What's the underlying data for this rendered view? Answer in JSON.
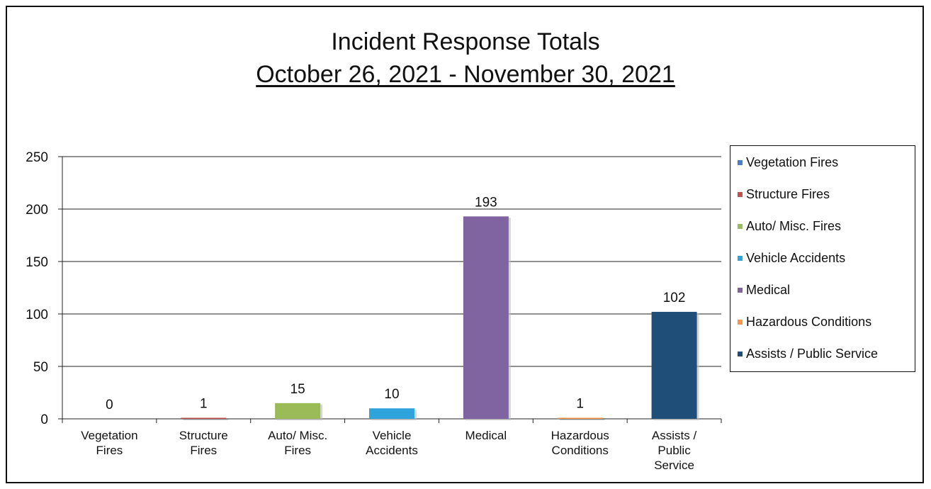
{
  "chart_data": {
    "type": "bar",
    "title": "Incident Response Totals",
    "subtitle": "October 26, 2021 - November 30, 2021",
    "xlabel": "",
    "ylabel": "",
    "ylim": [
      0,
      250
    ],
    "yticks": [
      "0",
      "50",
      "100",
      "150",
      "200",
      "250"
    ],
    "categories": [
      "Vegetation Fires",
      "Structure Fires",
      "Auto/ Misc. Fires",
      "Vehicle Accidents",
      "Medical",
      "Hazardous Conditions",
      "Assists / Public Service"
    ],
    "category_labels": [
      [
        "Vegetation",
        "Fires"
      ],
      [
        "Structure",
        "Fires"
      ],
      [
        "Auto/ Misc.",
        "Fires"
      ],
      [
        "Vehicle",
        "Accidents"
      ],
      [
        "Medical"
      ],
      [
        "Hazardous",
        "Conditions"
      ],
      [
        "Assists /",
        "Public",
        "Service"
      ]
    ],
    "values": [
      0,
      1,
      15,
      10,
      193,
      1,
      102
    ],
    "data_labels": [
      "0",
      "1",
      "15",
      "10",
      "193",
      "1",
      "102"
    ],
    "colors": [
      "#4a7ec9",
      "#c0504d",
      "#9bbb59",
      "#2ea3dc",
      "#8064a2",
      "#f79646",
      "#1f4e79"
    ],
    "grid": true,
    "legend_position": "right",
    "legend": [
      "Vegetation Fires",
      "Structure Fires",
      "Auto/ Misc. Fires",
      "Vehicle Accidents",
      "Medical",
      "Hazardous Conditions",
      "Assists / Public Service"
    ]
  }
}
